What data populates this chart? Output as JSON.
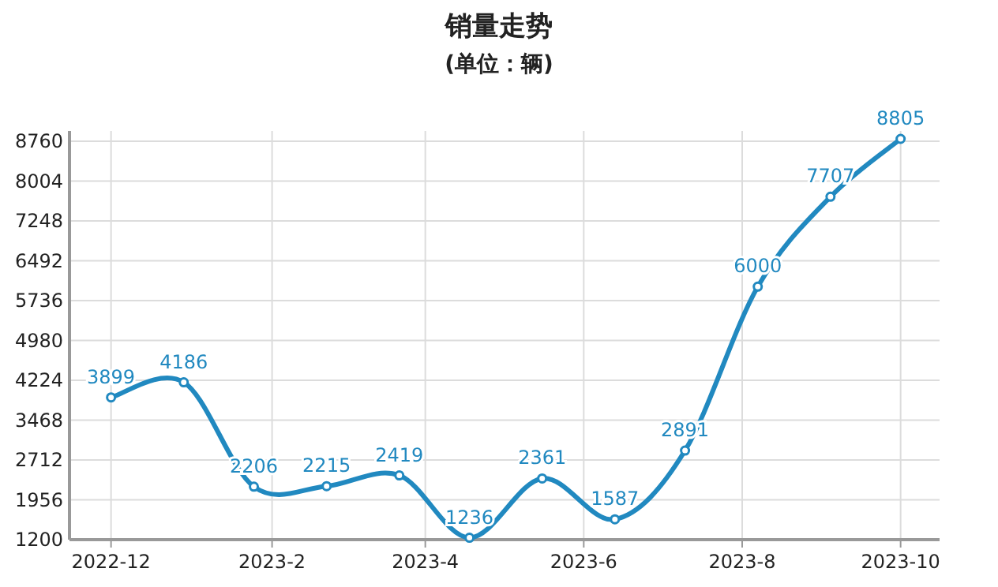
{
  "chart_data": {
    "type": "line",
    "title": "销量走势",
    "subtitle": "(单位：辆)",
    "x": [
      "2022-12-01",
      "2022-12-29",
      "2023-01-25",
      "2023-02-22",
      "2023-03-22",
      "2023-04-18",
      "2023-05-16",
      "2023-06-13",
      "2023-07-10",
      "2023-08-07",
      "2023-09-04",
      "2023-10-01"
    ],
    "xlim": [
      "2022-11-15",
      "2023-10-16"
    ],
    "xticks": [
      {
        "value": "2022-12-01",
        "label": "2022-12"
      },
      {
        "value": "2023-02-01",
        "label": "2023-2"
      },
      {
        "value": "2023-04-01",
        "label": "2023-4"
      },
      {
        "value": "2023-06-01",
        "label": "2023-6"
      },
      {
        "value": "2023-08-01",
        "label": "2023-8"
      },
      {
        "value": "2023-10-01",
        "label": "2023-10"
      }
    ],
    "ylim": [
      1200,
      8805
    ],
    "yticks": [
      1200,
      1956,
      2712,
      3468,
      4224,
      4980,
      5736,
      6492,
      7248,
      8004,
      8760
    ],
    "series": [
      {
        "color": "#2189c0",
        "values": [
          3899,
          4186,
          2206,
          2215,
          2419,
          1236,
          2361,
          1587,
          2891,
          6000,
          7707,
          8805
        ]
      }
    ],
    "data_labels": true,
    "marker": "circle",
    "grid": true
  }
}
